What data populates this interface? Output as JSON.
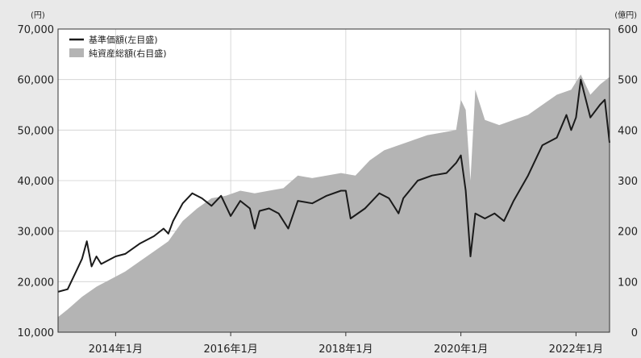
{
  "chart_data": {
    "type": "area",
    "title": "",
    "left_axis": {
      "unit": "(円)",
      "ylim": [
        10000,
        70000
      ],
      "ticks": [
        "10,000",
        "20,000",
        "30,000",
        "40,000",
        "50,000",
        "60,000",
        "70,000"
      ]
    },
    "right_axis": {
      "unit": "(億円)",
      "ylim": [
        0,
        600
      ],
      "ticks": [
        "0",
        "100",
        "200",
        "300",
        "400",
        "500",
        "600"
      ]
    },
    "x_axis": {
      "range": [
        "2013-01",
        "2022-08"
      ],
      "tick_labels": [
        {
          "date": "2014-01",
          "label": "2014年1月"
        },
        {
          "date": "2016-01",
          "label": "2016年1月"
        },
        {
          "date": "2018-01",
          "label": "2018年1月"
        },
        {
          "date": "2020-01",
          "label": "2020年1月"
        },
        {
          "date": "2022-01",
          "label": "2022年1月"
        }
      ]
    },
    "grid": true,
    "legend_position": "top-left",
    "series": [
      {
        "name": "基準価額(左目盛)",
        "kind": "line",
        "axis": "left",
        "color": "#1a1a1a",
        "points": [
          [
            "2013-01",
            18000
          ],
          [
            "2013-03",
            18500
          ],
          [
            "2013-05",
            22500
          ],
          [
            "2013-06",
            24500
          ],
          [
            "2013-07",
            28000
          ],
          [
            "2013-08",
            23000
          ],
          [
            "2013-09",
            25000
          ],
          [
            "2013-10",
            23500
          ],
          [
            "2013-12",
            24500
          ],
          [
            "2014-01",
            25000
          ],
          [
            "2014-03",
            25500
          ],
          [
            "2014-06",
            27500
          ],
          [
            "2014-09",
            29000
          ],
          [
            "2014-11",
            30500
          ],
          [
            "2014-12",
            29500
          ],
          [
            "2015-01",
            32000
          ],
          [
            "2015-03",
            35500
          ],
          [
            "2015-05",
            37500
          ],
          [
            "2015-07",
            36500
          ],
          [
            "2015-09",
            35000
          ],
          [
            "2015-11",
            37000
          ],
          [
            "2016-01",
            33000
          ],
          [
            "2016-03",
            36000
          ],
          [
            "2016-05",
            34500
          ],
          [
            "2016-06",
            30500
          ],
          [
            "2016-07",
            34000
          ],
          [
            "2016-09",
            34500
          ],
          [
            "2016-11",
            33500
          ],
          [
            "2017-01",
            30500
          ],
          [
            "2017-03",
            36000
          ],
          [
            "2017-06",
            35500
          ],
          [
            "2017-09",
            37000
          ],
          [
            "2017-12",
            38000
          ],
          [
            "2018-01",
            38000
          ],
          [
            "2018-02",
            32500
          ],
          [
            "2018-05",
            34500
          ],
          [
            "2018-08",
            37500
          ],
          [
            "2018-10",
            36500
          ],
          [
            "2018-12",
            33500
          ],
          [
            "2019-01",
            36500
          ],
          [
            "2019-04",
            40000
          ],
          [
            "2019-07",
            41000
          ],
          [
            "2019-10",
            41500
          ],
          [
            "2019-12",
            43500
          ],
          [
            "2020-01",
            45000
          ],
          [
            "2020-02",
            38000
          ],
          [
            "2020-03",
            25000
          ],
          [
            "2020-04",
            33500
          ],
          [
            "2020-06",
            32500
          ],
          [
            "2020-08",
            33500
          ],
          [
            "2020-10",
            32000
          ],
          [
            "2020-12",
            36000
          ],
          [
            "2021-03",
            41000
          ],
          [
            "2021-06",
            47000
          ],
          [
            "2021-09",
            48500
          ],
          [
            "2021-11",
            53000
          ],
          [
            "2021-12",
            50000
          ],
          [
            "2022-01",
            52500
          ],
          [
            "2022-02",
            60000
          ],
          [
            "2022-04",
            52500
          ],
          [
            "2022-06",
            55000
          ],
          [
            "2022-07",
            56000
          ],
          [
            "2022-08",
            47500
          ]
        ]
      },
      {
        "name": "純資産総額(右目盛)",
        "kind": "area",
        "axis": "right",
        "color": "#b4b4b4",
        "points": [
          [
            "2013-01",
            30
          ],
          [
            "2013-03",
            45
          ],
          [
            "2013-06",
            70
          ],
          [
            "2013-09",
            90
          ],
          [
            "2013-12",
            105
          ],
          [
            "2014-03",
            120
          ],
          [
            "2014-06",
            140
          ],
          [
            "2014-09",
            160
          ],
          [
            "2014-12",
            180
          ],
          [
            "2015-03",
            220
          ],
          [
            "2015-06",
            245
          ],
          [
            "2015-09",
            265
          ],
          [
            "2015-12",
            270
          ],
          [
            "2016-03",
            280
          ],
          [
            "2016-06",
            275
          ],
          [
            "2016-09",
            280
          ],
          [
            "2016-12",
            285
          ],
          [
            "2017-03",
            310
          ],
          [
            "2017-06",
            305
          ],
          [
            "2017-09",
            310
          ],
          [
            "2017-12",
            315
          ],
          [
            "2018-03",
            310
          ],
          [
            "2018-06",
            340
          ],
          [
            "2018-09",
            360
          ],
          [
            "2018-12",
            370
          ],
          [
            "2019-03",
            380
          ],
          [
            "2019-06",
            390
          ],
          [
            "2019-09",
            395
          ],
          [
            "2019-12",
            400
          ],
          [
            "2020-01",
            460
          ],
          [
            "2020-02",
            440
          ],
          [
            "2020-03",
            300
          ],
          [
            "2020-04",
            480
          ],
          [
            "2020-06",
            420
          ],
          [
            "2020-09",
            410
          ],
          [
            "2020-12",
            420
          ],
          [
            "2021-03",
            430
          ],
          [
            "2021-06",
            450
          ],
          [
            "2021-09",
            470
          ],
          [
            "2021-12",
            480
          ],
          [
            "2022-02",
            510
          ],
          [
            "2022-04",
            470
          ],
          [
            "2022-06",
            490
          ],
          [
            "2022-08",
            505
          ]
        ]
      }
    ]
  }
}
